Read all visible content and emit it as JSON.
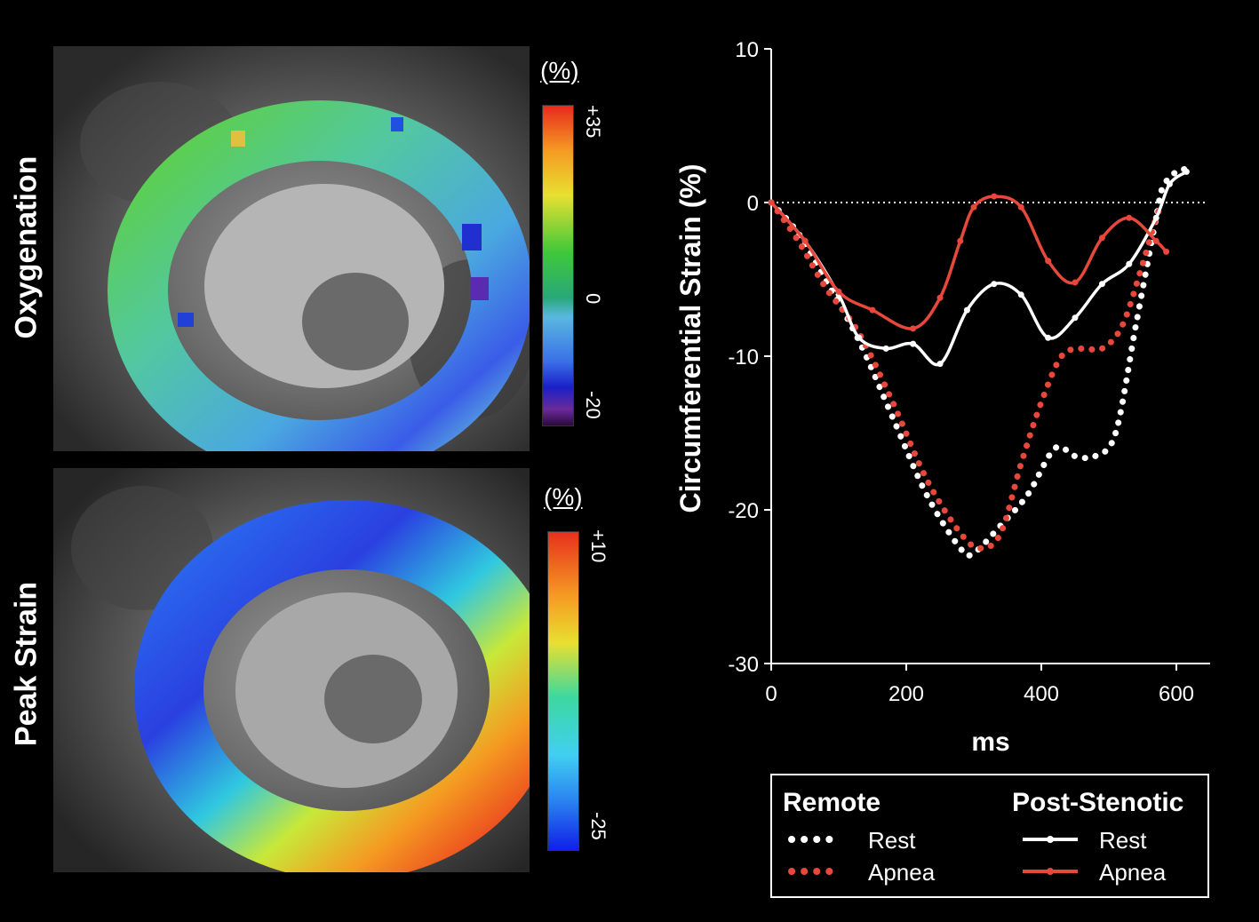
{
  "panels": {
    "oxygenation": {
      "label": "Oxygenation",
      "unit": "(%)",
      "ticks": [
        "+35",
        "0",
        "-20"
      ]
    },
    "peak_strain": {
      "label": "Peak Strain",
      "unit": "(%)",
      "ticks": [
        "+10",
        "-25"
      ]
    }
  },
  "legend": {
    "remote_title": "Remote",
    "post_title": "Post-Stenotic",
    "remote_rest": "Rest",
    "remote_apnea": "Apnea",
    "post_rest": "Rest",
    "post_apnea": "Apnea"
  },
  "colors": {
    "white": "#ffffff",
    "red": "#e8483c",
    "background": "#000000"
  },
  "chart_data": {
    "type": "line",
    "title": "",
    "xlabel": "ms",
    "ylabel": "Circumferential Strain (%)",
    "xlim": [
      0,
      650
    ],
    "ylim": [
      -30,
      10
    ],
    "xticks": [
      0,
      200,
      400,
      600
    ],
    "yticks": [
      10,
      0,
      -10,
      -20,
      -30
    ],
    "reference_line_y": 0,
    "series": [
      {
        "name": "Remote Rest",
        "style": "dotted",
        "color": "#ffffff",
        "x": [
          0,
          40,
          80,
          130,
          180,
          230,
          280,
          300,
          340,
          380,
          420,
          450,
          480,
          510,
          540,
          570,
          580,
          600,
          620
        ],
        "y": [
          0,
          -2,
          -5,
          -9,
          -14,
          -19,
          -22.5,
          -22.8,
          -21,
          -19,
          -16,
          -16.5,
          -16.5,
          -15,
          -8,
          -1,
          1,
          2,
          2.2
        ]
      },
      {
        "name": "Remote Apnea",
        "style": "dotted",
        "color": "#e8483c",
        "x": [
          0,
          40,
          80,
          130,
          180,
          230,
          280,
          310,
          340,
          370,
          400,
          430,
          460,
          490,
          520,
          550,
          570,
          580
        ],
        "y": [
          0,
          -2.5,
          -5.5,
          -8.5,
          -13,
          -18,
          -21.5,
          -22.5,
          -21.5,
          -17,
          -13,
          -10,
          -9.5,
          -9.5,
          -8,
          -4,
          -1,
          0
        ]
      },
      {
        "name": "Post-Stenotic Rest",
        "style": "solid",
        "color": "#ffffff",
        "x": [
          0,
          50,
          100,
          130,
          170,
          210,
          250,
          290,
          330,
          370,
          410,
          450,
          490,
          530,
          570,
          590,
          615
        ],
        "y": [
          0,
          -2.5,
          -6,
          -8.8,
          -9.5,
          -9.2,
          -10.5,
          -7,
          -5.3,
          -6,
          -8.8,
          -7.5,
          -5.3,
          -4,
          -1,
          1.2,
          2
        ]
      },
      {
        "name": "Post-Stenotic Apnea",
        "style": "solid",
        "color": "#e8483c",
        "x": [
          0,
          50,
          100,
          150,
          210,
          250,
          280,
          300,
          330,
          370,
          410,
          450,
          490,
          530,
          570,
          585
        ],
        "y": [
          0,
          -2.5,
          -5.8,
          -7,
          -8.2,
          -6.2,
          -2.5,
          -0.3,
          0.4,
          -0.3,
          -3.8,
          -5.2,
          -2.3,
          -1,
          -2.5,
          -3.2
        ]
      }
    ]
  }
}
